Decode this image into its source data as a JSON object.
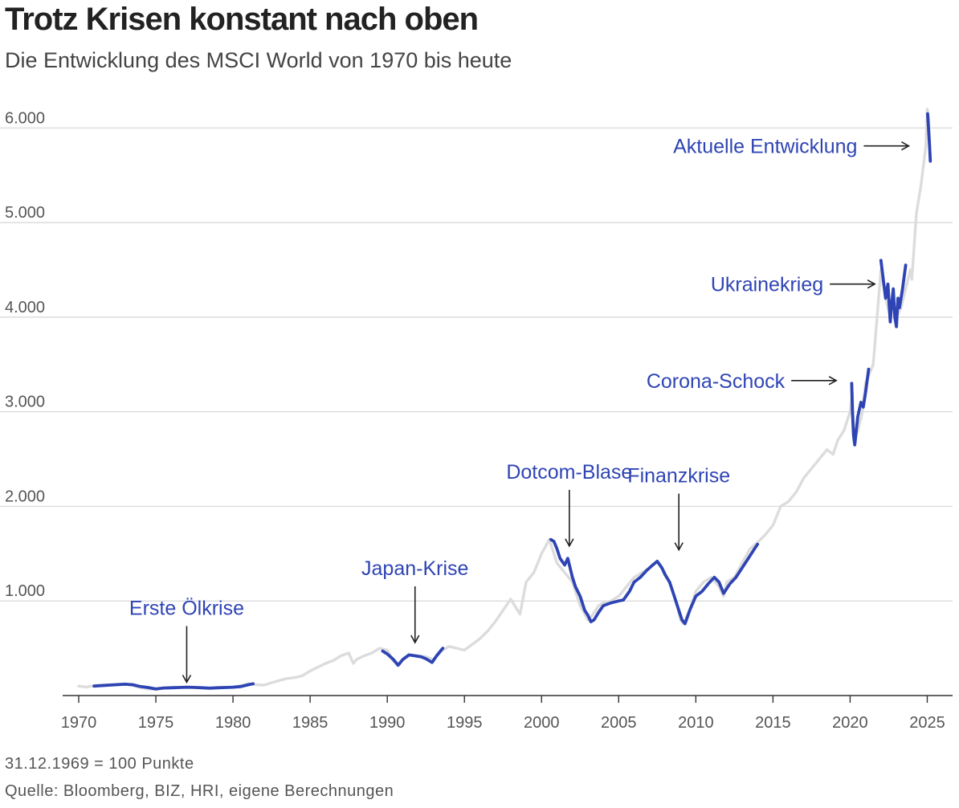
{
  "chart_data": {
    "type": "line",
    "title": "Trotz Krisen konstant nach oben",
    "subtitle": "Die Entwicklung des MSCI World von 1970 bis heute",
    "xlabel": "",
    "ylabel": "",
    "xlim": [
      1970,
      2025.6
    ],
    "ylim": [
      0,
      6300
    ],
    "x_ticks": [
      1970,
      1975,
      1980,
      1985,
      1990,
      1995,
      2000,
      2005,
      2010,
      2015,
      2020,
      2025
    ],
    "x_tick_labels": [
      "1970",
      "1975",
      "1980",
      "1985",
      "1990",
      "1995",
      "2000",
      "2005",
      "2010",
      "2015",
      "2020",
      "2025"
    ],
    "y_ticks": [
      1000,
      2000,
      3000,
      4000,
      5000,
      6000
    ],
    "y_tick_labels": [
      "1.000",
      "2.000",
      "3.000",
      "4.000",
      "5.000",
      "6.000"
    ],
    "grid": "horizontal",
    "colors": {
      "base": "#dcdcdc",
      "highlight": "#2f44b4",
      "grid": "#d6d6d6",
      "axis": "#333333"
    },
    "series": [
      {
        "x": [
          1970.0,
          1970.5,
          1971.0,
          1971.5,
          1972.0,
          1972.5,
          1973.0,
          1973.5,
          1974.0,
          1974.5,
          1975.0,
          1975.5,
          1976.0,
          1976.5,
          1977.0,
          1977.5,
          1978.0,
          1978.5,
          1979.0,
          1979.5,
          1980.0,
          1980.5,
          1981.0,
          1981.5,
          1982.0,
          1982.5,
          1983.0,
          1983.5,
          1984.0,
          1984.5,
          1985.0,
          1985.5,
          1986.0,
          1986.5,
          1987.0,
          1987.5,
          1987.8,
          1988.0,
          1988.5,
          1989.0,
          1989.5,
          1990.0,
          1990.4,
          1990.8,
          1991.0,
          1991.5,
          1992.0,
          1992.5,
          1993.0,
          1993.5,
          1994.0,
          1994.5,
          1995.0,
          1995.5,
          1996.0,
          1996.5,
          1997.0,
          1997.5,
          1998.0,
          1998.6,
          1999.0,
          1999.5,
          2000.0,
          2000.5,
          2001.0,
          2001.5,
          2002.0,
          2002.5,
          2003.0,
          2003.3,
          2003.7,
          2004.0,
          2004.5,
          2005.0,
          2005.5,
          2006.0,
          2006.5,
          2007.0,
          2007.5,
          2008.0,
          2008.4,
          2008.8,
          2009.0,
          2009.2,
          2009.6,
          2010.0,
          2010.5,
          2011.0,
          2011.5,
          2011.8,
          2012.0,
          2012.5,
          2013.0,
          2013.5,
          2014.0,
          2014.5,
          2015.0,
          2015.5,
          2016.0,
          2016.5,
          2017.0,
          2017.5,
          2018.0,
          2018.5,
          2018.9,
          2019.2,
          2019.6,
          2020.0,
          2020.15,
          2020.25,
          2020.5,
          2020.8,
          2021.0,
          2021.5,
          2022.0,
          2022.3,
          2022.6,
          2022.8,
          2023.0,
          2023.3,
          2023.6,
          2023.9,
          2024.0,
          2024.3,
          2024.6,
          2024.9,
          2025.0,
          2025.1,
          2025.2
        ],
        "y": [
          100,
          90,
          105,
          110,
          115,
          120,
          125,
          105,
          85,
          70,
          65,
          80,
          85,
          88,
          90,
          85,
          80,
          78,
          85,
          88,
          90,
          105,
          125,
          115,
          110,
          135,
          160,
          180,
          190,
          210,
          260,
          300,
          340,
          370,
          420,
          450,
          340,
          380,
          420,
          450,
          500,
          480,
          360,
          330,
          380,
          430,
          420,
          410,
          380,
          470,
          520,
          500,
          480,
          540,
          600,
          680,
          780,
          900,
          1020,
          860,
          1200,
          1300,
          1500,
          1650,
          1400,
          1300,
          1200,
          950,
          800,
          850,
          950,
          980,
          1000,
          1050,
          1150,
          1250,
          1300,
          1350,
          1420,
          1300,
          1150,
          950,
          800,
          760,
          900,
          1100,
          1200,
          1250,
          1150,
          1050,
          1200,
          1250,
          1400,
          1550,
          1620,
          1700,
          1800,
          2000,
          2050,
          2150,
          2300,
          2400,
          2500,
          2600,
          2550,
          2700,
          2800,
          3000,
          3200,
          2700,
          2800,
          3000,
          3300,
          3500,
          4500,
          4200,
          4000,
          4200,
          4000,
          4100,
          4300,
          4500,
          4400,
          5100,
          5400,
          5800,
          6200,
          6100,
          5650
        ]
      },
      {
        "x": [
          1971.0,
          1972.0,
          1973.0,
          1973.5,
          1974.0,
          1974.5,
          1975.0,
          1975.5,
          1976.0,
          1976.5,
          1977.0,
          1977.5,
          1978.0,
          1978.5,
          1979.0,
          1979.5,
          1980.0,
          1980.5,
          1981.0,
          1981.3
        ],
        "y": [
          100,
          110,
          120,
          115,
          95,
          85,
          70,
          80,
          82,
          85,
          88,
          86,
          82,
          78,
          82,
          85,
          88,
          95,
          115,
          125
        ]
      },
      {
        "x": [
          1989.7,
          1990.0,
          1990.4,
          1990.7,
          1991.0,
          1991.4,
          1991.8,
          1992.2,
          1992.5,
          1992.9,
          1993.2,
          1993.6
        ],
        "y": [
          470,
          440,
          380,
          320,
          380,
          430,
          420,
          410,
          390,
          350,
          420,
          500
        ]
      },
      {
        "x": [
          2000.6,
          2000.8,
          2001.0,
          2001.2,
          2001.5,
          2001.7,
          2002.0,
          2002.2,
          2002.5,
          2002.8,
          2003.0,
          2003.2,
          2003.4,
          2003.7,
          2004.0,
          2004.5,
          2005.0,
          2005.3
        ],
        "y": [
          1650,
          1630,
          1550,
          1450,
          1380,
          1450,
          1250,
          1150,
          1050,
          900,
          850,
          780,
          800,
          880,
          950,
          980,
          1000,
          1010
        ]
      },
      {
        "x": [
          2005.3,
          2005.7,
          2006.0,
          2006.4,
          2006.8,
          2007.2,
          2007.5,
          2007.8,
          2008.0,
          2008.3,
          2008.6,
          2008.9,
          2009.1,
          2009.3,
          2009.6,
          2010.0,
          2010.4,
          2010.8,
          2011.2,
          2011.5,
          2011.8,
          2012.2,
          2012.6,
          2013.0,
          2013.4,
          2013.8,
          2014.0
        ],
        "y": [
          1010,
          1100,
          1200,
          1250,
          1320,
          1380,
          1420,
          1350,
          1280,
          1200,
          1050,
          900,
          800,
          760,
          900,
          1050,
          1100,
          1180,
          1250,
          1200,
          1080,
          1180,
          1250,
          1350,
          1450,
          1550,
          1600
        ]
      },
      {
        "x": [
          2020.1,
          2020.15,
          2020.22,
          2020.3,
          2020.5,
          2020.7,
          2020.85,
          2021.0,
          2021.2
        ],
        "y": [
          3300,
          3000,
          2750,
          2650,
          2950,
          3100,
          3050,
          3200,
          3450
        ]
      },
      {
        "x": [
          2022.0,
          2022.15,
          2022.3,
          2022.45,
          2022.6,
          2022.7,
          2022.8,
          2022.9,
          2023.0,
          2023.1,
          2023.2,
          2023.4,
          2023.6
        ],
        "y": [
          4600,
          4400,
          4200,
          4350,
          3950,
          4150,
          4300,
          4000,
          3900,
          4200,
          4100,
          4300,
          4550
        ]
      },
      {
        "x": [
          2025.02,
          2025.08,
          2025.15,
          2025.2
        ],
        "y": [
          6150,
          6000,
          5800,
          5650
        ]
      }
    ],
    "annotations": [
      {
        "label": "Erste Ölkrise",
        "year": 1977.0,
        "value": 140,
        "direction": "down"
      },
      {
        "label": "Japan-Krise",
        "year": 1991.8,
        "value": 560,
        "direction": "down"
      },
      {
        "label": "Dotcom-Blase",
        "year": 2001.8,
        "value": 1580,
        "direction": "down"
      },
      {
        "label": "Finanzkrise",
        "year": 2008.9,
        "value": 1540,
        "direction": "down"
      },
      {
        "label": "Corona-Schock",
        "year": 2019.1,
        "value": 3330,
        "direction": "right"
      },
      {
        "label": "Ukrainekrieg",
        "year": 2021.6,
        "value": 4350,
        "direction": "right"
      },
      {
        "label": "Aktuelle Entwicklung",
        "year": 2023.8,
        "value": 5810,
        "direction": "right"
      }
    ]
  },
  "notes": {
    "base": "31.12.1969 = 100 Punkte",
    "source": "Quelle: Bloomberg, BIZ, HRI, eigene Berechnungen"
  }
}
